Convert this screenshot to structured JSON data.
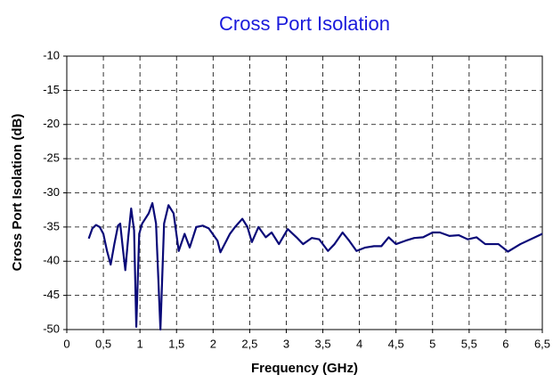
{
  "chart_data": {
    "type": "line",
    "title": "Cross Port Isolation",
    "xlabel": "Frequency  (GHz)",
    "ylabel": "Cross Port Isolation  (dB)",
    "xlim": [
      0,
      6.5
    ],
    "ylim": [
      -50,
      -10
    ],
    "xticks": [
      0,
      {
        "value": 0.5,
        "label": "0,5"
      },
      1,
      {
        "value": 1.5,
        "label": "1,5"
      },
      2,
      {
        "value": 2.5,
        "label": "2,5"
      },
      3,
      {
        "value": 3.5,
        "label": "3,5"
      },
      4,
      {
        "value": 4.5,
        "label": "4,5"
      },
      5,
      {
        "value": 5.5,
        "label": "5,5"
      },
      6,
      {
        "value": 6.5,
        "label": "6,5"
      }
    ],
    "yticks": [
      -10,
      -15,
      -20,
      -25,
      -30,
      -35,
      -40,
      -45,
      -50
    ],
    "grid": true,
    "series": [
      {
        "name": "Cross Port Isolation",
        "color": "#0a0a78",
        "x": [
          0.3,
          0.35,
          0.4,
          0.45,
          0.5,
          0.55,
          0.6,
          0.65,
          0.7,
          0.73,
          0.77,
          0.8,
          0.84,
          0.88,
          0.92,
          0.95,
          0.99,
          1.03,
          1.12,
          1.17,
          1.22,
          1.28,
          1.33,
          1.39,
          1.46,
          1.53,
          1.61,
          1.68,
          1.77,
          1.86,
          1.94,
          2.06,
          2.1,
          2.23,
          2.3,
          2.4,
          2.47,
          2.53,
          2.62,
          2.72,
          2.8,
          2.9,
          3.02,
          3.14,
          3.23,
          3.35,
          3.45,
          3.57,
          3.66,
          3.77,
          3.86,
          3.96,
          4.08,
          4.2,
          4.3,
          4.4,
          4.5,
          4.63,
          4.75,
          4.87,
          5.0,
          5.1,
          5.23,
          5.36,
          5.48,
          5.6,
          5.72,
          5.9,
          6.03,
          6.2,
          6.4,
          6.5
        ],
        "values": [
          -36.7,
          -35.2,
          -34.7,
          -35.0,
          -36.0,
          -38.5,
          -40.5,
          -37.5,
          -34.8,
          -34.5,
          -38.5,
          -41.3,
          -36.5,
          -32.3,
          -35.5,
          -49.6,
          -36.0,
          -34.5,
          -33.0,
          -31.5,
          -34.5,
          -50.0,
          -34.5,
          -31.8,
          -33.0,
          -38.5,
          -36.0,
          -38.0,
          -35.0,
          -34.8,
          -35.2,
          -37.0,
          -38.7,
          -36.0,
          -35.0,
          -33.8,
          -35.0,
          -37.2,
          -35.0,
          -36.5,
          -35.8,
          -37.5,
          -35.3,
          -36.5,
          -37.5,
          -36.6,
          -36.8,
          -38.5,
          -37.5,
          -35.8,
          -37.0,
          -38.5,
          -38.0,
          -37.8,
          -37.8,
          -36.5,
          -37.5,
          -37.0,
          -36.6,
          -36.5,
          -35.8,
          -35.8,
          -36.3,
          -36.2,
          -36.8,
          -36.5,
          -37.5,
          -37.5,
          -38.6,
          -37.5,
          -36.5,
          -36.0
        ]
      }
    ]
  }
}
